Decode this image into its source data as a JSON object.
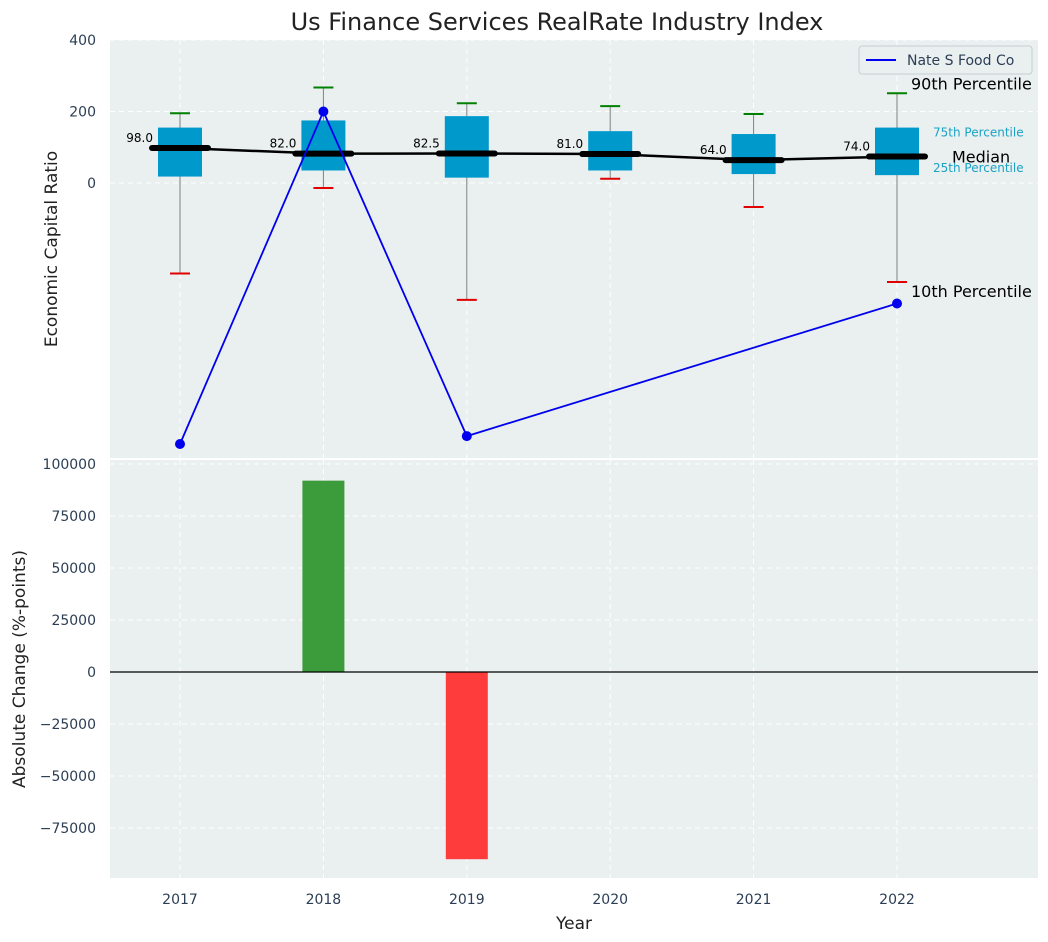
{
  "chart_data": [
    {
      "type": "box",
      "title": "Us Finance Services RealRate Industry Index",
      "xlabel": "",
      "ylabel": "Economic Capital Ratio",
      "categories": [
        "2017",
        "2018",
        "2019",
        "2020",
        "2021",
        "2022"
      ],
      "yticks": [
        "400",
        "200",
        "0"
      ],
      "ylim": [
        -780,
        400
      ],
      "grid": true,
      "legend": {
        "position": "top-right",
        "entries": [
          "Nate S Food Co"
        ]
      },
      "percentiles": {
        "p10": [
          -253,
          -14,
          -327,
          12,
          -67,
          -277
        ],
        "p25": [
          18,
          35,
          15,
          35,
          25,
          22
        ],
        "median": [
          98,
          82,
          82.5,
          81,
          64,
          74
        ],
        "p75": [
          155,
          175,
          187,
          145,
          137,
          155
        ],
        "p90": [
          195,
          267,
          223,
          215,
          193,
          251
        ]
      },
      "median_labels": [
        "98.0",
        "82.0",
        "82.5",
        "81.0",
        "64.0",
        "74.0"
      ],
      "series": [
        {
          "name": "Nate S Food Co",
          "x": [
            "2017",
            "2018",
            "2019",
            "2022"
          ],
          "values": [
            -730,
            200,
            -708,
            -337
          ],
          "color": "#0000ee"
        }
      ],
      "annotations": {
        "p90": "90th Percentile",
        "p75": "75th Percentile",
        "median": "Median",
        "p25": "25th Percentile",
        "p10": "10th Percentile"
      }
    },
    {
      "type": "bar",
      "xlabel": "Year",
      "ylabel": "Absolute Change (%-points)",
      "categories": [
        "2017",
        "2018",
        "2019",
        "2020",
        "2021",
        "2022"
      ],
      "values": [
        null,
        92000,
        -90000,
        null,
        null,
        null
      ],
      "ylim": [
        -98000,
        100000
      ],
      "yticks": [
        "100000",
        "75000",
        "50000",
        "25000",
        "0",
        "−25000",
        "−50000",
        "−75000"
      ],
      "grid": true
    }
  ],
  "colors": {
    "panel_bg": "#eaeff0",
    "box_fill": "#0099cc",
    "whisker": "#808080",
    "p90_cap": "#008000",
    "p10_cap": "#e00000",
    "median_line": "#000000",
    "company_line": "#0000ee",
    "bar_positive": "#3c9c3c",
    "bar_negative": "#ff3c3c",
    "percentile_label_blue": "#1ba3c4"
  }
}
